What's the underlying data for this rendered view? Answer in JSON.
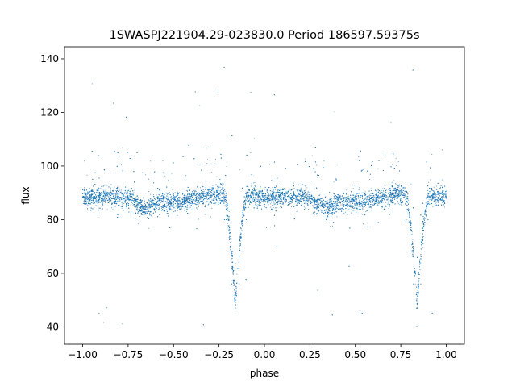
{
  "chart_data": {
    "type": "scatter",
    "title": "1SWASPJ221904.29-023830.0 Period 186597.59375s",
    "xlabel": "phase",
    "ylabel": "flux",
    "xlim": [
      -1.1,
      1.1
    ],
    "ylim": [
      33.5,
      144.5
    ],
    "x_ticks": [
      -1.0,
      -0.75,
      -0.5,
      -0.25,
      0.0,
      0.25,
      0.5,
      0.75,
      1.0
    ],
    "x_tick_labels": [
      "−1.00",
      "−0.75",
      "−0.50",
      "−0.25",
      "0.00",
      "0.25",
      "0.50",
      "0.75",
      "1.00"
    ],
    "y_ticks": [
      40,
      60,
      80,
      100,
      120,
      140
    ],
    "y_tick_labels": [
      "40",
      "60",
      "80",
      "100",
      "120",
      "140"
    ],
    "grid": false,
    "legend": "none",
    "marker_color": "#1f77b4",
    "series": [
      {
        "baseline_flux": 88,
        "primary_eclipse": {
          "phases": [
            -0.16,
            0.84
          ],
          "min_flux": 47,
          "half_width": 0.065
        },
        "secondary_eclipse": {
          "phases": [
            -0.66,
            0.34
          ],
          "min_flux": 85
        },
        "scatter_sigma": 1.8,
        "points": [
          [
            -1.0,
            88.5
          ],
          [
            -0.95,
            89.5
          ],
          [
            -0.9,
            90.0
          ],
          [
            -0.85,
            89.0
          ],
          [
            -0.8,
            89.5
          ],
          [
            -0.75,
            88.5
          ],
          [
            -0.7,
            87.5
          ],
          [
            -0.66,
            86.0
          ],
          [
            -0.6,
            87.5
          ],
          [
            -0.55,
            88.5
          ],
          [
            -0.5,
            89.0
          ],
          [
            -0.45,
            89.5
          ],
          [
            -0.4,
            89.0
          ],
          [
            -0.35,
            88.0
          ],
          [
            -0.3,
            87.5
          ],
          [
            -0.25,
            86.5
          ],
          [
            -0.22,
            80.0
          ],
          [
            -0.2,
            68.0
          ],
          [
            -0.18,
            56.0
          ],
          [
            -0.16,
            47.0
          ],
          [
            -0.14,
            56.0
          ],
          [
            -0.12,
            68.0
          ],
          [
            -0.1,
            80.0
          ],
          [
            -0.08,
            86.5
          ],
          [
            -0.05,
            88.0
          ],
          [
            0.0,
            89.0
          ],
          [
            0.05,
            89.5
          ],
          [
            0.1,
            89.5
          ],
          [
            0.15,
            89.0
          ],
          [
            0.2,
            89.0
          ],
          [
            0.25,
            88.5
          ],
          [
            0.3,
            87.5
          ],
          [
            0.34,
            86.0
          ],
          [
            0.4,
            87.0
          ],
          [
            0.45,
            88.0
          ],
          [
            0.5,
            88.5
          ],
          [
            0.55,
            89.0
          ],
          [
            0.6,
            89.0
          ],
          [
            0.65,
            88.0
          ],
          [
            0.7,
            87.0
          ],
          [
            0.75,
            86.5
          ],
          [
            0.78,
            80.0
          ],
          [
            0.8,
            68.0
          ],
          [
            0.82,
            56.0
          ],
          [
            0.84,
            47.0
          ],
          [
            0.86,
            56.0
          ],
          [
            0.88,
            68.0
          ],
          [
            0.9,
            80.0
          ],
          [
            0.92,
            86.0
          ],
          [
            0.95,
            87.5
          ],
          [
            1.0,
            88.0
          ]
        ]
      }
    ]
  }
}
